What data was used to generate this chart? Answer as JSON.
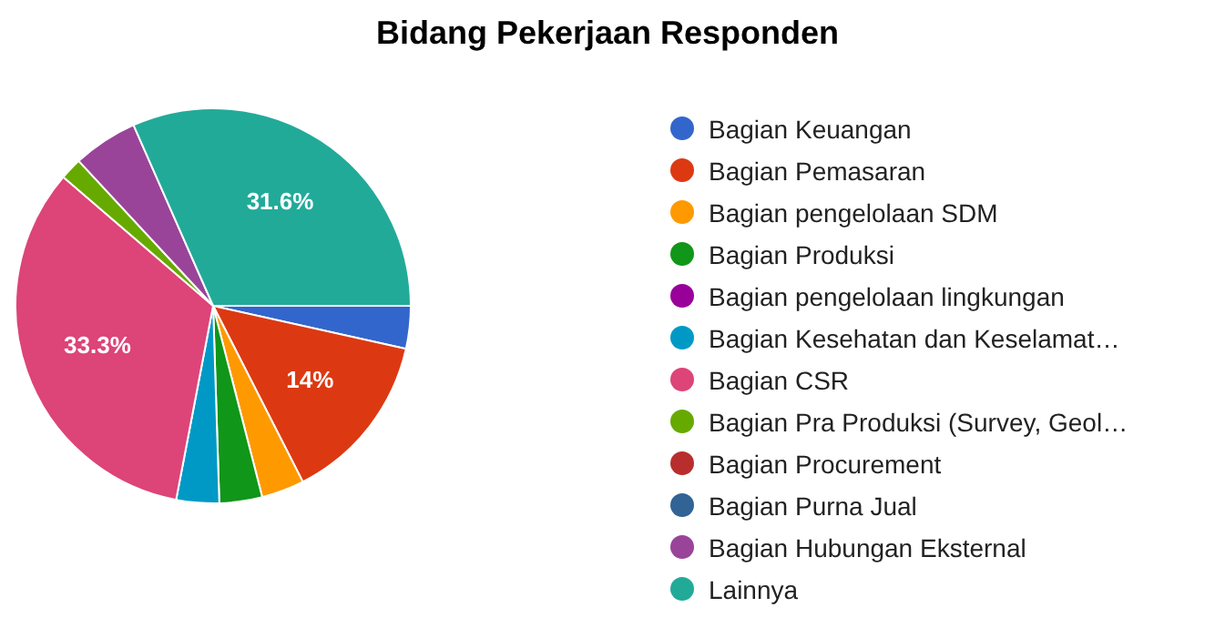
{
  "chart_data": {
    "type": "pie",
    "title": "Bidang Pekerjaan Responden",
    "categories": [
      "Bagian Keuangan",
      "Bagian Pemasaran",
      "Bagian pengelolaan SDM",
      "Bagian Produksi",
      "Bagian pengelolaan lingkungan",
      "Bagian Kesehatan dan Keselamat…",
      "Bagian CSR",
      "Bagian Pra Produksi (Survey, Geol…",
      "Bagian Procurement",
      "Bagian Purna Jual",
      "Bagian Hubungan Eksternal",
      "Lainnya"
    ],
    "values": [
      3.5,
      14,
      3.5,
      3.5,
      0,
      3.5,
      33.3,
      1.8,
      0,
      0,
      5.3,
      31.6
    ],
    "colors": [
      "#3366cc",
      "#dc3912",
      "#ff9900",
      "#109618",
      "#990099",
      "#0099c6",
      "#dd4477",
      "#66aa00",
      "#b82e2e",
      "#316395",
      "#994499",
      "#22aa99"
    ],
    "value_labels": [
      null,
      "14%",
      null,
      null,
      null,
      null,
      "33.3%",
      null,
      null,
      null,
      null,
      "31.6%"
    ],
    "legend": "right"
  }
}
